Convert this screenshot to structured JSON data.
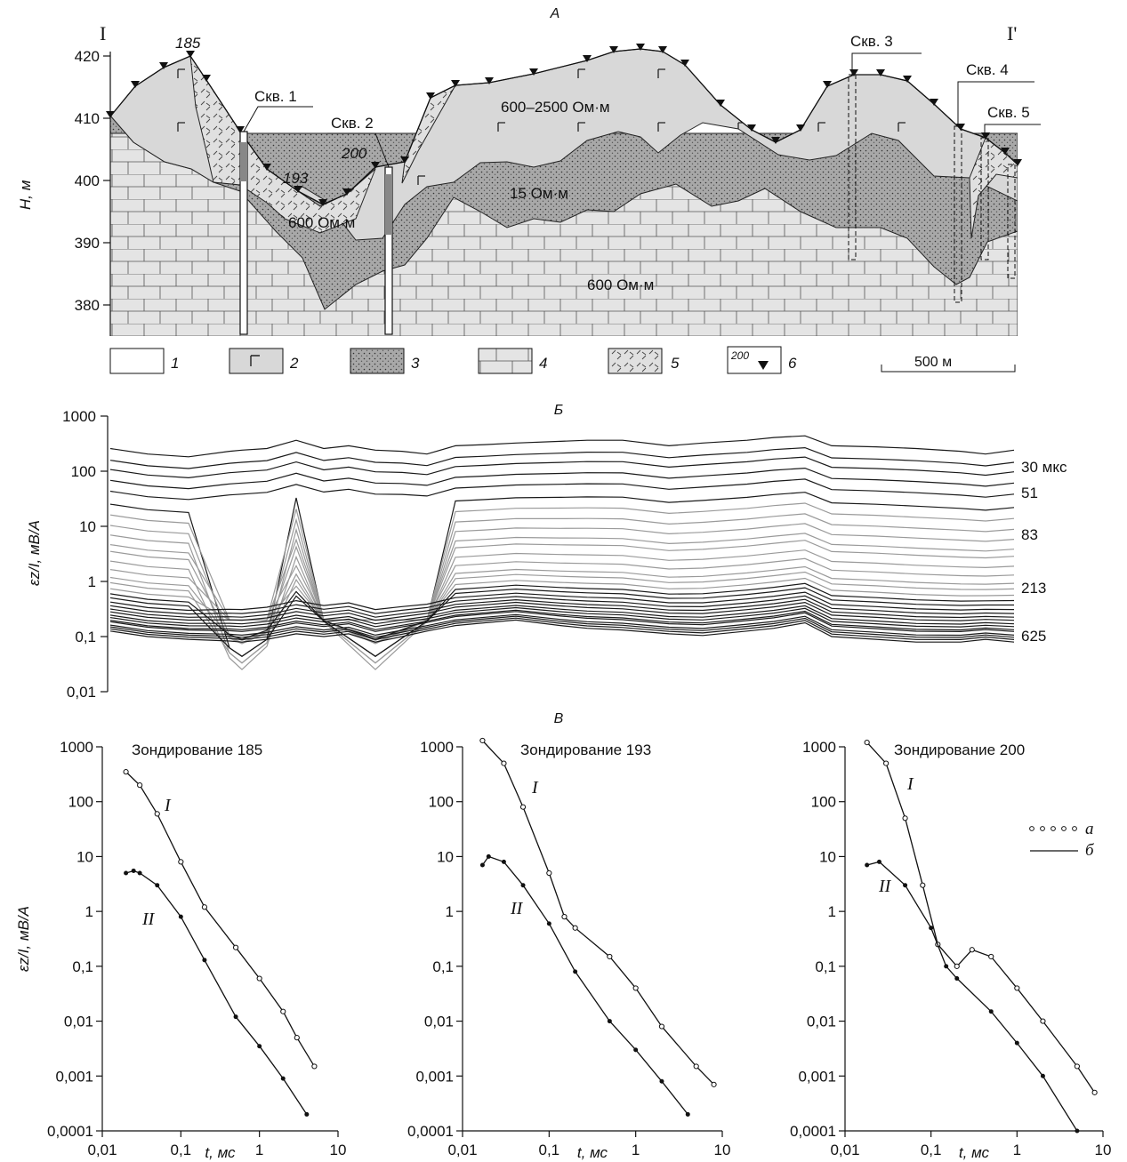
{
  "panel_a": {
    "letter": "А",
    "left_label": "I",
    "right_label": "I'",
    "ylabel": "H, м",
    "yticks": [
      "420",
      "410",
      "400",
      "390",
      "380"
    ],
    "well_labels": [
      "Скв. 1",
      "Скв. 2",
      "Скв. 3",
      "Скв. 4",
      "Скв. 5"
    ],
    "sounding_labels": [
      "185",
      "193",
      "200"
    ],
    "resistivity_labels": [
      "600–2500 Ом·м",
      "15 Ом·м",
      "600 Ом·м",
      "600 Ом·м"
    ],
    "legend": [
      {
        "num": "1",
        "desc": "white"
      },
      {
        "num": "2",
        "desc": "Г pattern"
      },
      {
        "num": "3",
        "desc": "dotted"
      },
      {
        "num": "4",
        "desc": "brick"
      },
      {
        "num": "5",
        "desc": "hatched"
      },
      {
        "num": "6",
        "desc": "200 marker",
        "text": "200"
      }
    ],
    "scale_bar": "500 м",
    "colors": {
      "gray": "#d8d8d8",
      "dotted": "#9b9b9b",
      "brick": "#e2e2e2"
    }
  },
  "chart_data": [
    {
      "type": "line",
      "panel": "Б",
      "ylabel": "εz/I, мВ/А",
      "yscale": "log",
      "ylim": [
        0.01,
        1000
      ],
      "yticks": [
        "1000",
        "100",
        "10",
        "1",
        "0,1",
        "0,01"
      ],
      "curve_labels": [
        "30 мкс",
        "51",
        "83",
        "213",
        "625"
      ],
      "curve_count": 30,
      "values_at_right_edge": [
        230,
        140,
        95,
        60,
        38,
        22,
        14,
        9,
        6,
        4,
        3,
        2,
        1.4,
        1,
        0.8,
        0.62,
        0.5,
        0.42,
        0.35,
        0.3,
        0.26,
        0.23,
        0.2,
        0.18,
        0.16,
        0.15,
        0.13,
        0.12,
        0.11,
        0.1
      ]
    },
    {
      "type": "scatter",
      "panel": "В",
      "title": "Зондирование 185",
      "xlabel": "t, мс",
      "ylabel": "εz/I, мВ/А",
      "xscale": "log",
      "yscale": "log",
      "xlim": [
        0.01,
        10
      ],
      "ylim": [
        0.0001,
        1000
      ],
      "xticks": [
        "0,01",
        "0,1",
        "1",
        "10"
      ],
      "yticks": [
        "1000",
        "100",
        "10",
        "1",
        "0,1",
        "0,01",
        "0,001",
        "0,0001"
      ],
      "series": [
        {
          "name": "I",
          "x": [
            0.02,
            0.03,
            0.05,
            0.1,
            0.2,
            0.5,
            1,
            2,
            3,
            5
          ],
          "y": [
            350,
            200,
            60,
            8,
            1.2,
            0.22,
            0.06,
            0.015,
            0.005,
            0.0015
          ]
        },
        {
          "name": "II",
          "x": [
            0.02,
            0.025,
            0.03,
            0.05,
            0.1,
            0.2,
            0.5,
            1,
            2,
            4
          ],
          "y": [
            5,
            5.5,
            5,
            3,
            0.8,
            0.13,
            0.012,
            0.0035,
            0.0009,
            0.0002
          ]
        }
      ]
    },
    {
      "type": "scatter",
      "title": "Зондирование 193",
      "xlabel": "t, мс",
      "ylabel": "εz/I, мВ/А",
      "xscale": "log",
      "yscale": "log",
      "xlim": [
        0.01,
        10
      ],
      "ylim": [
        0.0001,
        1000
      ],
      "xticks": [
        "0,01",
        "0,1",
        "1",
        "10"
      ],
      "yticks": [
        "1000",
        "100",
        "10",
        "1",
        "0,1",
        "0,01",
        "0,001",
        "0,0001"
      ],
      "series": [
        {
          "name": "I",
          "x": [
            0.017,
            0.03,
            0.05,
            0.1,
            0.15,
            0.2,
            0.5,
            1,
            2,
            5,
            8
          ],
          "y": [
            1300,
            500,
            80,
            5,
            0.8,
            0.5,
            0.15,
            0.04,
            0.008,
            0.0015,
            0.0007
          ]
        },
        {
          "name": "II",
          "x": [
            0.017,
            0.02,
            0.03,
            0.05,
            0.1,
            0.2,
            0.5,
            1,
            2,
            4
          ],
          "y": [
            7,
            10,
            8,
            3,
            0.6,
            0.08,
            0.01,
            0.003,
            0.0008,
            0.0002
          ]
        }
      ]
    },
    {
      "type": "scatter",
      "title": "Зондирование 200",
      "xlabel": "t, мс",
      "ylabel": "εz/I, мВ/А",
      "xscale": "log",
      "yscale": "log",
      "xlim": [
        0.01,
        10
      ],
      "ylim": [
        0.0001,
        1000
      ],
      "xticks": [
        "0,01",
        "0,1",
        "1",
        "10"
      ],
      "yticks": [
        "1000",
        "100",
        "10",
        "1",
        "0,1",
        "0,01",
        "0,001",
        "0,0001"
      ],
      "series": [
        {
          "name": "I",
          "x": [
            0.018,
            0.03,
            0.05,
            0.08,
            0.12,
            0.2,
            0.3,
            0.5,
            1,
            2,
            5,
            8
          ],
          "y": [
            1200,
            500,
            50,
            3,
            0.25,
            0.1,
            0.2,
            0.15,
            0.04,
            0.01,
            0.0015,
            0.0005
          ]
        },
        {
          "name": "II",
          "x": [
            0.018,
            0.025,
            0.05,
            0.1,
            0.15,
            0.2,
            0.5,
            1,
            2,
            5
          ],
          "y": [
            7,
            8,
            3,
            0.5,
            0.1,
            0.06,
            0.015,
            0.004,
            0.001,
            0.0001
          ]
        }
      ]
    }
  ],
  "legend_v": [
    {
      "key": "а",
      "style": "dots"
    },
    {
      "key": "б",
      "style": "line"
    }
  ]
}
